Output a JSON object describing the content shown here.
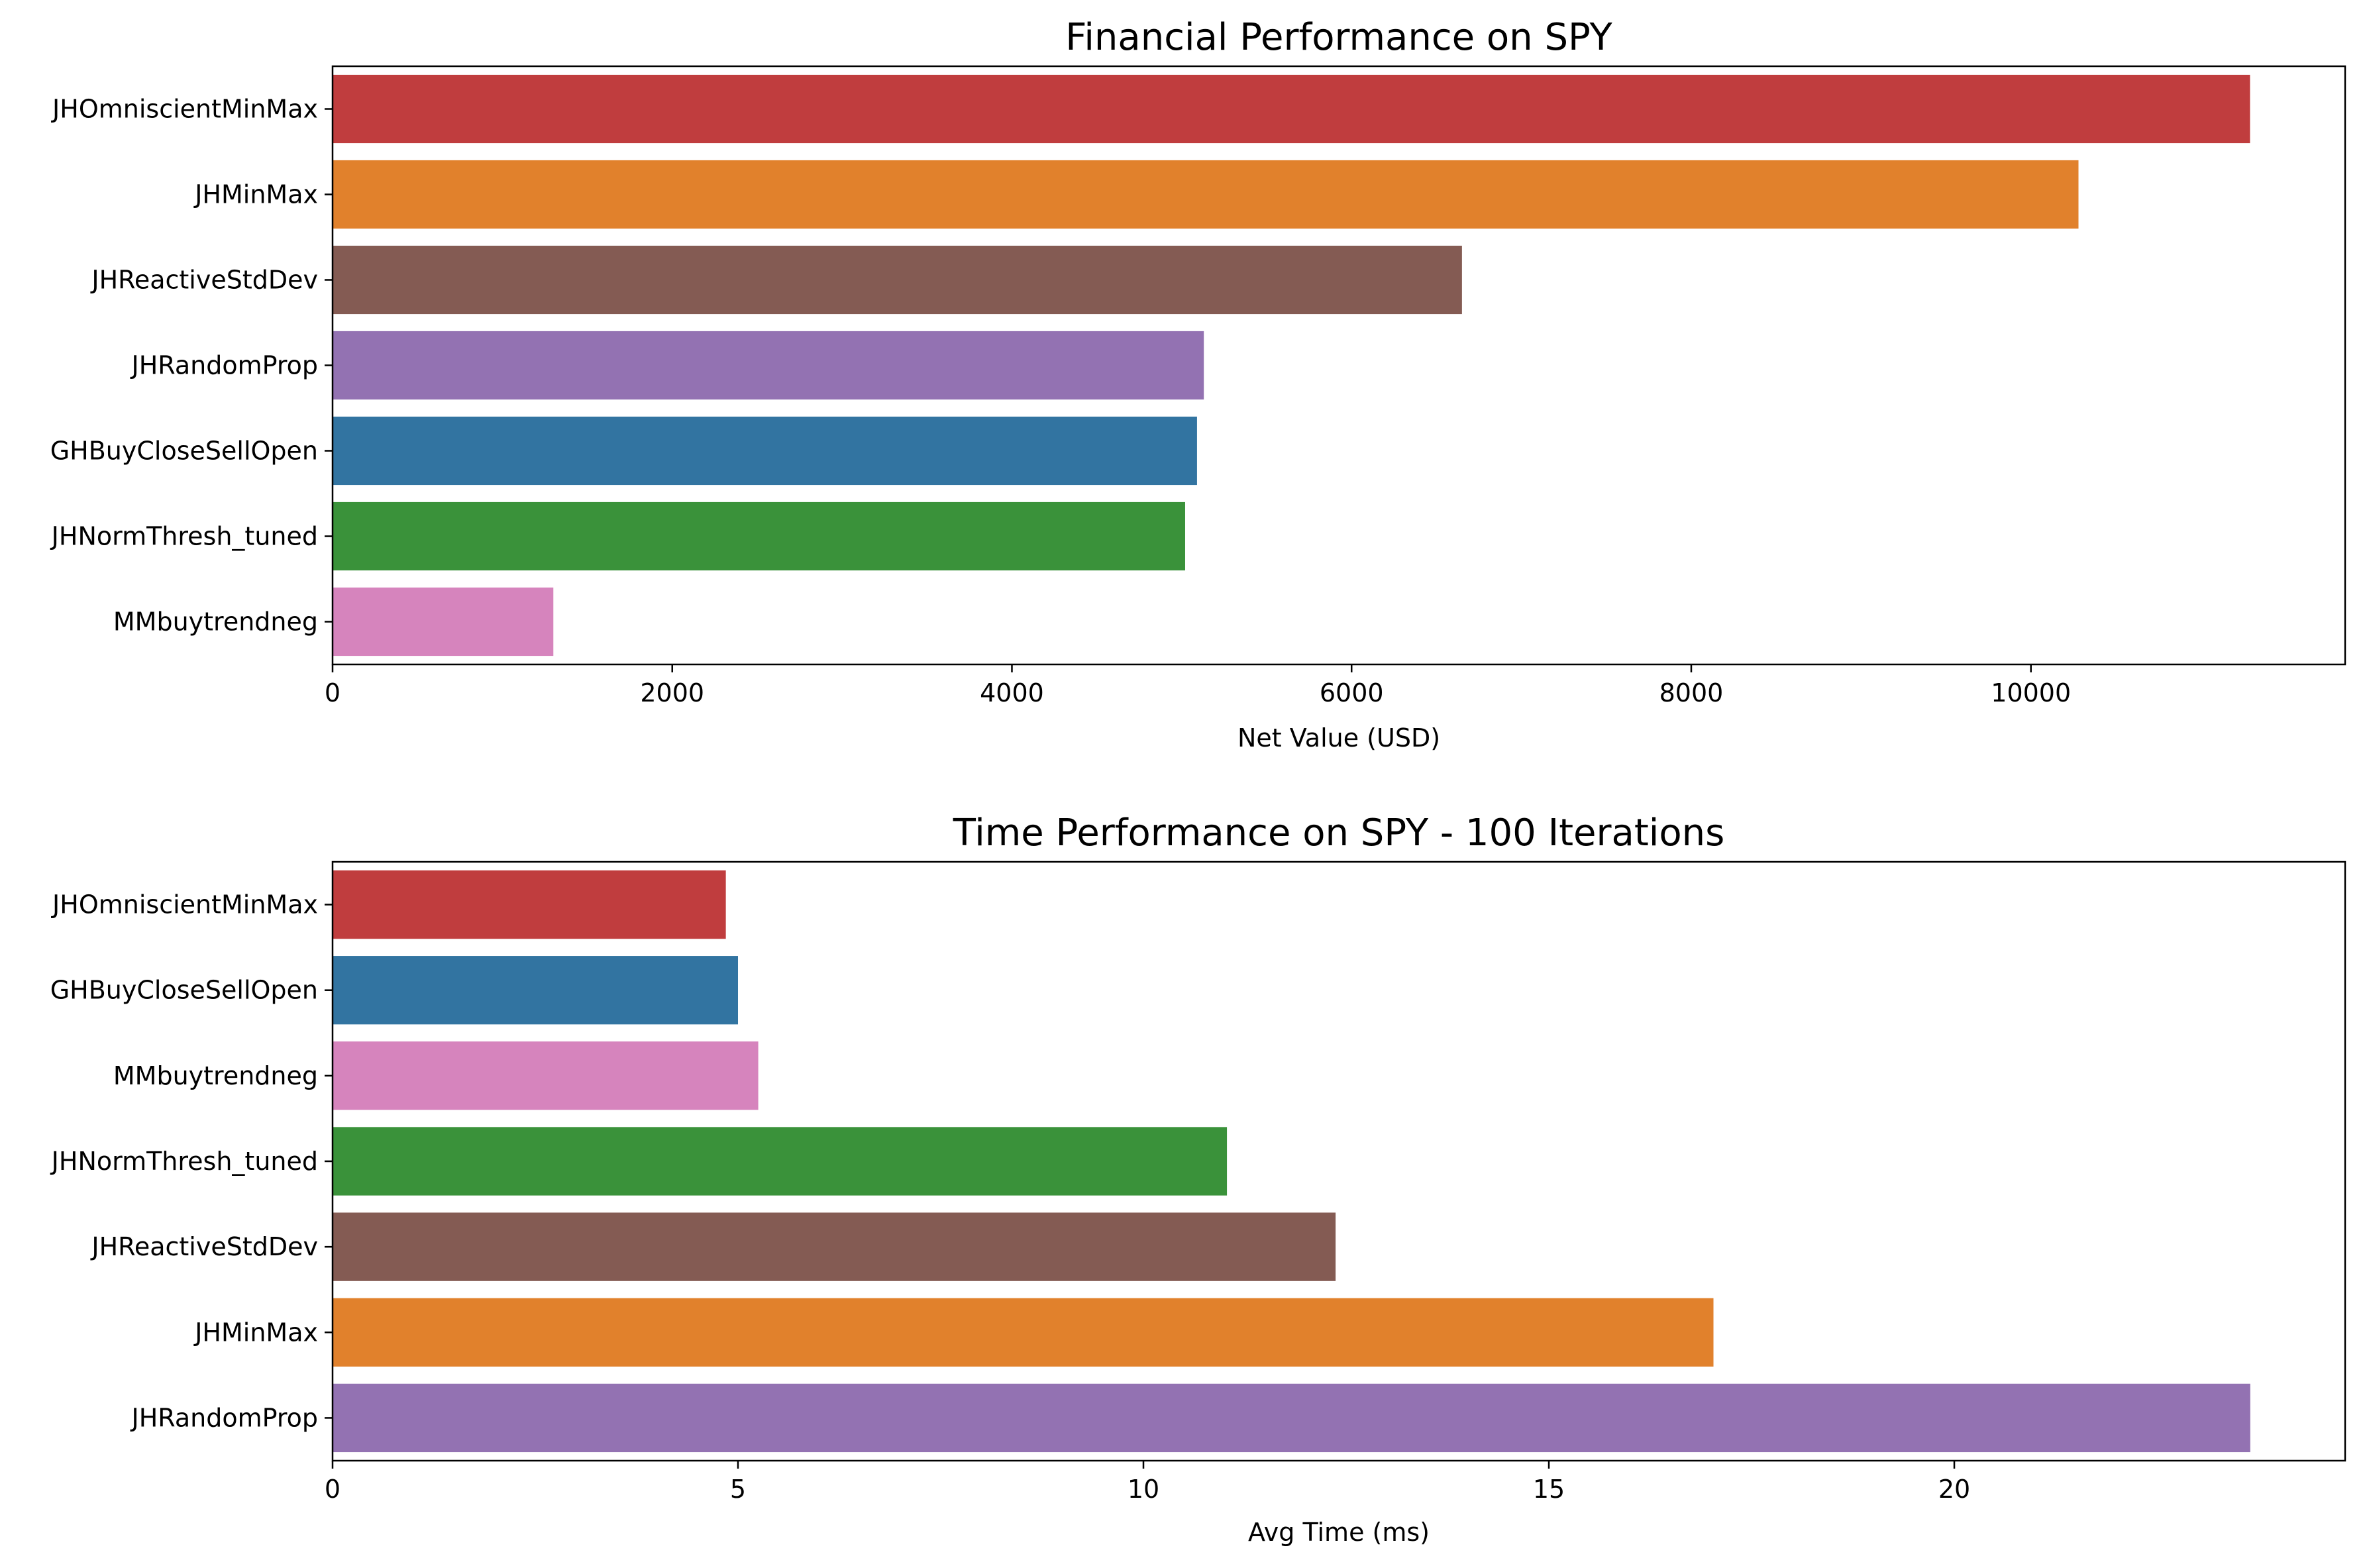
{
  "chart_data": [
    {
      "type": "bar",
      "orientation": "horizontal",
      "title": "Financial Performance on SPY",
      "xlabel": "Net Value (USD)",
      "ylabel": "",
      "xlim": [
        0,
        11850
      ],
      "xticks": [
        0,
        2000,
        4000,
        6000,
        8000,
        10000
      ],
      "grid": false,
      "categories": [
        "JHOmniscientMinMax",
        "JHMinMax",
        "JHReactiveStdDev",
        "JHRandomProp",
        "GHBuyCloseSellOpen",
        "JHNormThresh_tuned",
        "MMbuytrendneg"
      ],
      "values": [
        11290,
        10280,
        6650,
        5130,
        5090,
        5020,
        1300
      ],
      "colors": [
        "#c03d3e",
        "#e1812c",
        "#845b53",
        "#9372b2",
        "#3274a1",
        "#3a923a",
        "#d684bd"
      ]
    },
    {
      "type": "bar",
      "orientation": "horizontal",
      "title": "Time Performance on SPY - 100 Iterations",
      "xlabel": "Avg Time (ms)",
      "ylabel": "",
      "xlim": [
        0,
        24.82
      ],
      "xticks": [
        0,
        5,
        10,
        15,
        20
      ],
      "grid": false,
      "categories": [
        "JHOmniscientMinMax",
        "GHBuyCloseSellOpen",
        "MMbuytrendneg",
        "JHNormThresh_tuned",
        "JHReactiveStdDev",
        "JHMinMax",
        "JHRandomProp"
      ],
      "values": [
        4.85,
        5.0,
        5.25,
        11.03,
        12.37,
        17.03,
        23.65
      ],
      "colors": [
        "#c03d3e",
        "#3274a1",
        "#d684bd",
        "#3a923a",
        "#845b53",
        "#e1812c",
        "#9372b2"
      ]
    }
  ]
}
